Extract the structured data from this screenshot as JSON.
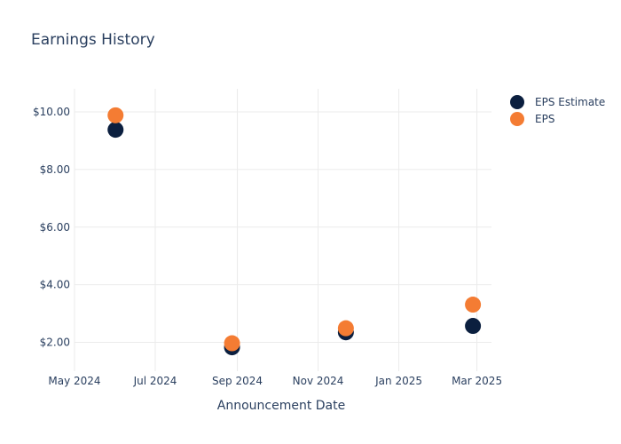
{
  "chart_data": {
    "type": "scatter",
    "title": "Earnings History",
    "xlabel": "Announcement Date",
    "ylabel": "",
    "x_ticks": [
      "May 2024",
      "Jul 2024",
      "Sep 2024",
      "Nov 2024",
      "Jan 2025",
      "Mar 2025"
    ],
    "x_tick_dates": [
      "2024-05-01",
      "2024-07-01",
      "2024-09-01",
      "2024-11-01",
      "2025-01-01",
      "2025-03-01"
    ],
    "xlim": [
      "2024-05-01",
      "2025-03-12"
    ],
    "y_ticks": [
      "$2.00",
      "$4.00",
      "$6.00",
      "$8.00",
      "$10.00"
    ],
    "y_tick_values": [
      2,
      4,
      6,
      8,
      10
    ],
    "ylim": [
      1.0,
      10.8
    ],
    "grid": true,
    "legend_position": "top-right",
    "series": [
      {
        "name": "EPS Estimate",
        "color": "#0b1f3f",
        "points": [
          {
            "x": "2024-06-01",
            "y": 9.38
          },
          {
            "x": "2024-08-28",
            "y": 1.83
          },
          {
            "x": "2024-11-22",
            "y": 2.35
          },
          {
            "x": "2025-02-26",
            "y": 2.57
          }
        ]
      },
      {
        "name": "EPS",
        "color": "#f47c33",
        "points": [
          {
            "x": "2024-06-01",
            "y": 9.88
          },
          {
            "x": "2024-08-28",
            "y": 1.97
          },
          {
            "x": "2024-11-22",
            "y": 2.49
          },
          {
            "x": "2025-02-26",
            "y": 3.31
          }
        ]
      }
    ]
  }
}
